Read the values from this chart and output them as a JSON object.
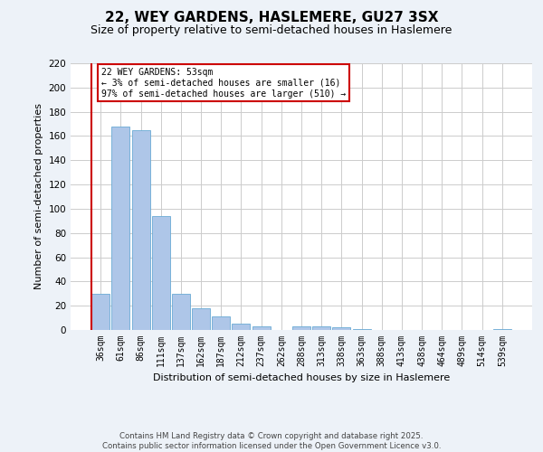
{
  "title1": "22, WEY GARDENS, HASLEMERE, GU27 3SX",
  "title2": "Size of property relative to semi-detached houses in Haslemere",
  "xlabel": "Distribution of semi-detached houses by size in Haslemere",
  "ylabel": "Number of semi-detached properties",
  "categories": [
    "36sqm",
    "61sqm",
    "86sqm",
    "111sqm",
    "137sqm",
    "162sqm",
    "187sqm",
    "212sqm",
    "237sqm",
    "262sqm",
    "288sqm",
    "313sqm",
    "338sqm",
    "363sqm",
    "388sqm",
    "413sqm",
    "438sqm",
    "464sqm",
    "489sqm",
    "514sqm",
    "539sqm"
  ],
  "values": [
    30,
    168,
    165,
    94,
    30,
    18,
    11,
    5,
    3,
    0,
    3,
    3,
    2,
    1,
    0,
    0,
    0,
    0,
    0,
    0,
    1
  ],
  "bar_color": "#aec6e8",
  "bar_edge_color": "#6aaad4",
  "marker_line_color": "#cc0000",
  "annotation_line1": "22 WEY GARDENS: 53sqm",
  "annotation_line2": "← 3% of semi-detached houses are smaller (16)",
  "annotation_line3": "97% of semi-detached houses are larger (510) →",
  "annotation_box_edgecolor": "#cc0000",
  "ylim": [
    0,
    220
  ],
  "yticks": [
    0,
    20,
    40,
    60,
    80,
    100,
    120,
    140,
    160,
    180,
    200,
    220
  ],
  "footer1": "Contains HM Land Registry data © Crown copyright and database right 2025.",
  "footer2": "Contains public sector information licensed under the Open Government Licence v3.0.",
  "bg_color": "#edf2f8",
  "plot_bg_color": "#ffffff",
  "grid_color": "#cccccc"
}
